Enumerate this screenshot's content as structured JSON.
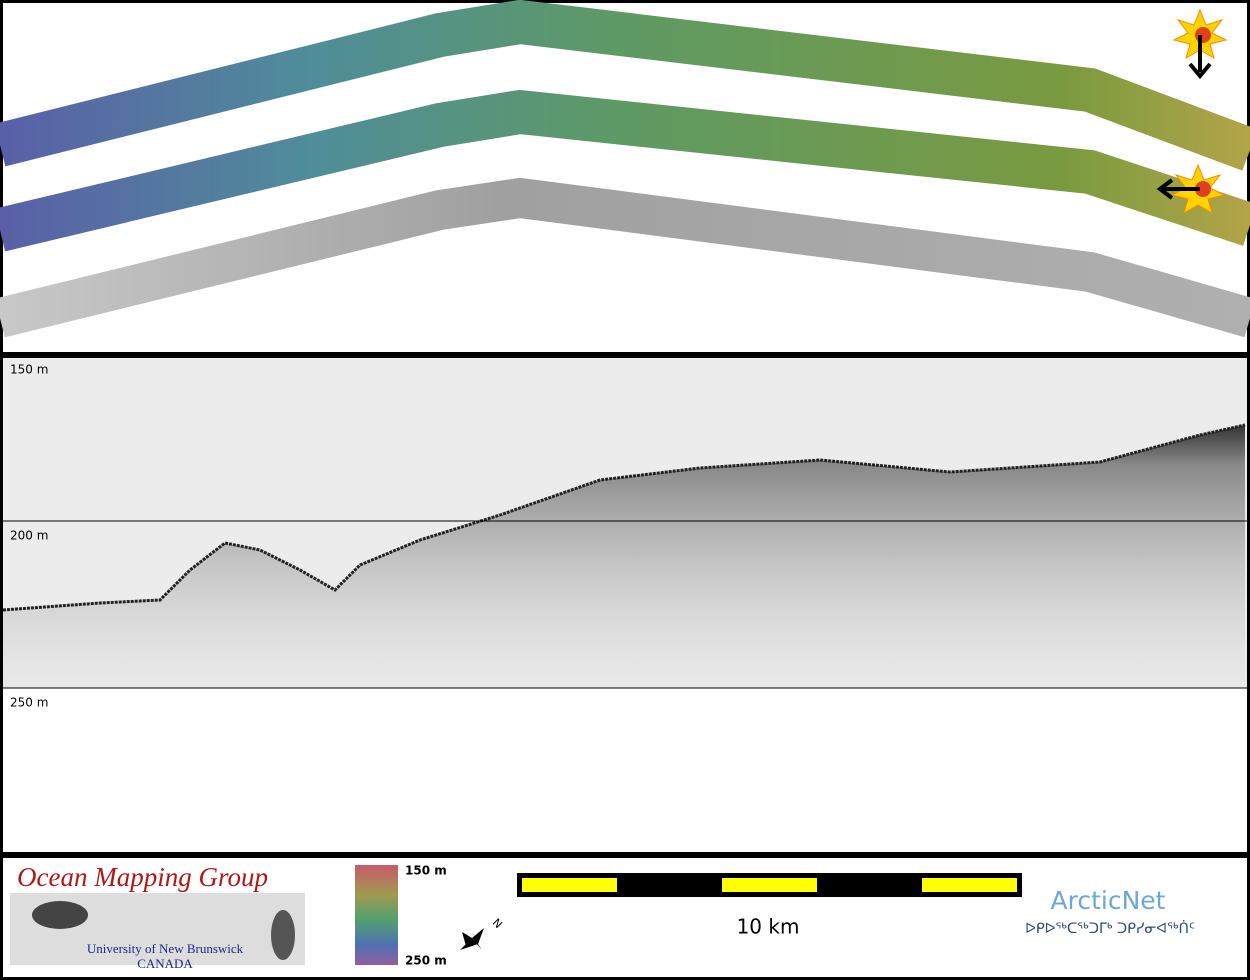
{
  "profile": {
    "depth_labels": [
      "150 m",
      "200 m",
      "250 m"
    ]
  },
  "footer": {
    "logo": {
      "title": "Ocean Mapping Group",
      "university": "University of New Brunswick",
      "country": "CANADA"
    },
    "colorbar": {
      "top_label": "150 m",
      "bottom_label": "250 m"
    },
    "north_label": "N",
    "scale_label": "10 km",
    "arcticnet": {
      "name": "ArcticNet",
      "inuktitut": "ᐅᑭᐅᖅᑕᖅᑐᒥᒃ ᑐᑭᓯᓂᐊᖅᑏᑦ"
    }
  }
}
